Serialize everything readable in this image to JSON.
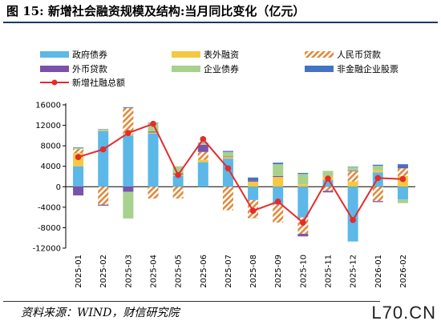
{
  "title": "图 15:  新增社会融资规模及结构:当月同比变化（亿元）",
  "source": "资料来源：WIND，财信研究院",
  "watermark": "L70.CN",
  "chart_data": {
    "type": "bar",
    "stacked": true,
    "categories": [
      "2025-01",
      "2025-02",
      "2025-03",
      "2025-04",
      "2025-05",
      "2025-06",
      "2025-07",
      "2025-08",
      "2025-09",
      "2025-10",
      "2025-11",
      "2025-12",
      "2026-01",
      "2026-02"
    ],
    "ylim": [
      -12000,
      16000
    ],
    "yticks": [
      -12000,
      -8000,
      -4000,
      0,
      4000,
      8000,
      12000,
      16000
    ],
    "legend_position": "top",
    "series": [
      {
        "name": "政府债券",
        "color": "#5bb8e8",
        "pattern": "solid",
        "values": [
          4000,
          10900,
          10000,
          10400,
          2200,
          4800,
          5500,
          -2600,
          -3500,
          -6000,
          1300,
          -10700,
          2800,
          -2500
        ]
      },
      {
        "name": "表外融资",
        "color": "#f5c842",
        "pattern": "solid",
        "values": [
          2600,
          200,
          200,
          200,
          200,
          500,
          300,
          1000,
          1900,
          500,
          700,
          1000,
          400,
          2100
        ]
      },
      {
        "name": "人民币贷款",
        "color": "#e08a3c",
        "pattern": "hatch",
        "values": [
          800,
          -3500,
          5200,
          -2300,
          -2300,
          1500,
          -4600,
          -3500,
          -3500,
          -3200,
          -800,
          2000,
          -2800,
          1500
        ]
      },
      {
        "name": "外币贷款",
        "color": "#7b52ab",
        "pattern": "solid",
        "values": [
          -1700,
          -200,
          -1000,
          200,
          200,
          1400,
          100,
          200,
          200,
          -500,
          -300,
          100,
          -200,
          200
        ]
      },
      {
        "name": "企业债券",
        "color": "#a9d18e",
        "pattern": "solid",
        "values": [
          200,
          100,
          -5200,
          1600,
          1400,
          300,
          900,
          -100,
          2300,
          2000,
          1100,
          700,
          900,
          -700
        ]
      },
      {
        "name": "非金融企业股票",
        "color": "#4472c4",
        "pattern": "solid",
        "values": [
          100,
          50,
          150,
          100,
          0,
          100,
          200,
          600,
          300,
          200,
          0,
          100,
          200,
          600
        ]
      }
    ],
    "line": {
      "name": "新增社融总额",
      "color": "#e52b2b",
      "values": [
        5800,
        7300,
        10500,
        12300,
        2300,
        9300,
        3600,
        -4700,
        -2900,
        -7000,
        1600,
        -6500,
        1700,
        1500
      ]
    }
  }
}
